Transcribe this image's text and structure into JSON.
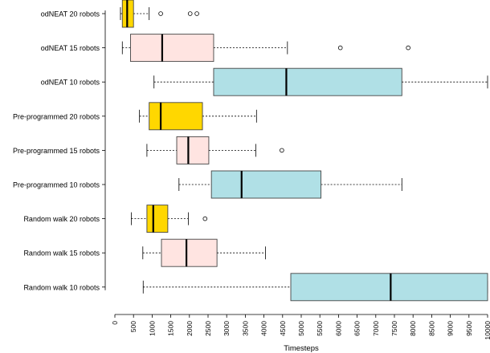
{
  "chart_data": {
    "type": "boxplot",
    "orientation": "horizontal",
    "title": "",
    "xlabel": "Timesteps",
    "ylabel": "",
    "xlim": [
      0,
      10000
    ],
    "xticks": [
      0,
      500,
      1000,
      1500,
      2000,
      2500,
      3000,
      3500,
      4000,
      4500,
      5000,
      5500,
      6000,
      6500,
      7000,
      7500,
      8000,
      8500,
      9000,
      9500,
      10000
    ],
    "xtick_labels": [
      "0",
      "500",
      "1000",
      "1500",
      "2000",
      "2500",
      "3000",
      "3500",
      "4000",
      "4500",
      "5000",
      "5500",
      "6000",
      "6500",
      "7000",
      "7500",
      "8000",
      "8500",
      "9000",
      "9500",
      "10000"
    ],
    "grid": false,
    "categories": [
      "odNEAT 20 robots",
      "odNEAT 15 robots",
      "odNEAT 10 robots",
      "Pre-programmed 20 robots",
      "Pre-programmed 15 robots",
      "Pre-programmed 10 robots",
      "Random walk 20 robots",
      "Random walk 15 robots",
      "Random walk 10 robots"
    ],
    "boxes": [
      {
        "label": "odNEAT 20 robots",
        "color": "#ffd700",
        "whisker_low": 150,
        "q1": 200,
        "median": 330,
        "q3": 500,
        "whisker_high": 920,
        "outliers": [
          1230,
          2020,
          2200
        ]
      },
      {
        "label": "odNEAT 15 robots",
        "color": "#ffe4e1",
        "whisker_low": 200,
        "q1": 420,
        "median": 1270,
        "q3": 2650,
        "whisker_high": 4630,
        "outliers": [
          6050,
          7870
        ]
      },
      {
        "label": "odNEAT 10 robots",
        "color": "#b0e0e6",
        "whisker_low": 1050,
        "q1": 2650,
        "median": 4600,
        "q3": 7700,
        "whisker_high": 10000,
        "outliers": []
      },
      {
        "label": "Pre-programmed 20 robots",
        "color": "#ffd700",
        "whisker_low": 660,
        "q1": 920,
        "median": 1230,
        "q3": 2350,
        "whisker_high": 3800,
        "outliers": []
      },
      {
        "label": "Pre-programmed 15 robots",
        "color": "#ffe4e1",
        "whisker_low": 860,
        "q1": 1660,
        "median": 1970,
        "q3": 2520,
        "whisker_high": 3780,
        "outliers": [
          4480
        ]
      },
      {
        "label": "Pre-programmed 10 robots",
        "color": "#b0e0e6",
        "whisker_low": 1720,
        "q1": 2590,
        "median": 3400,
        "q3": 5530,
        "whisker_high": 7700,
        "outliers": []
      },
      {
        "label": "Random walk 20 robots",
        "color": "#ffd700",
        "whisker_low": 440,
        "q1": 860,
        "median": 1030,
        "q3": 1420,
        "whisker_high": 1970,
        "outliers": [
          2420
        ]
      },
      {
        "label": "Random walk 15 robots",
        "color": "#ffe4e1",
        "whisker_low": 750,
        "q1": 1250,
        "median": 1920,
        "q3": 2740,
        "whisker_high": 4040,
        "outliers": []
      },
      {
        "label": "Random walk 10 robots",
        "color": "#b0e0e6",
        "whisker_low": 760,
        "q1": 4720,
        "median": 7400,
        "q3": 10000,
        "whisker_high": 10000,
        "outliers": []
      }
    ]
  }
}
